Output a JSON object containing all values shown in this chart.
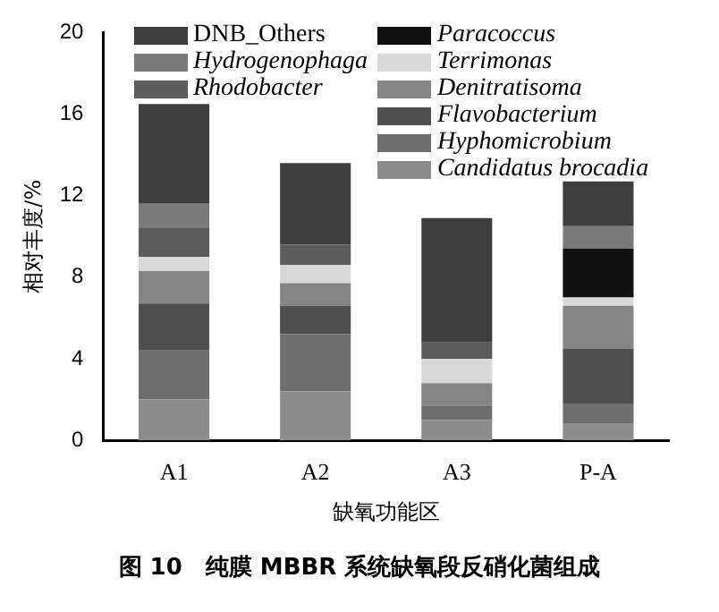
{
  "chart_data": {
    "type": "bar",
    "title": "图 10　纯膜 MBBR 系统缺氧段反硝化菌组成",
    "xlabel": "缺氧功能区",
    "ylabel": "相对丰度/%",
    "categories": [
      "A1",
      "A2",
      "A3",
      "P-A"
    ],
    "stacked": true,
    "ylim": [
      0,
      20
    ],
    "yticks": [
      0,
      4,
      8,
      12,
      16,
      20
    ],
    "grid": false,
    "legend": "top",
    "series": [
      {
        "name": "Candidatus brocadia",
        "color": "#8c8c8c",
        "values": [
          2.0,
          2.4,
          1.0,
          0.8
        ]
      },
      {
        "name": "Hyphomicrobium",
        "color": "#6e6e6e",
        "values": [
          2.4,
          2.8,
          0.7,
          1.0
        ]
      },
      {
        "name": "Flavobacterium",
        "color": "#4f4f4f",
        "values": [
          2.3,
          1.4,
          0,
          2.7
        ]
      },
      {
        "name": "Denitratisoma",
        "color": "#858585",
        "values": [
          1.6,
          1.1,
          1.1,
          2.1
        ]
      },
      {
        "name": "Terrimonas",
        "color": "#d8d8d8",
        "values": [
          0.7,
          0.9,
          1.2,
          0.4
        ]
      },
      {
        "name": "Paracoccus",
        "color": "#111111",
        "values": [
          0,
          0,
          0,
          2.4
        ]
      },
      {
        "name": "Rhodobacter",
        "color": "#5c5c5c",
        "values": [
          1.4,
          1.0,
          0.8,
          0
        ]
      },
      {
        "name": "Hydrogenophaga",
        "color": "#7a7a7a",
        "values": [
          1.2,
          0,
          0,
          1.1
        ]
      },
      {
        "name": "DNB_Others",
        "color": "#3e3e3e",
        "values": [
          4.9,
          4.0,
          6.1,
          2.2
        ]
      }
    ]
  }
}
